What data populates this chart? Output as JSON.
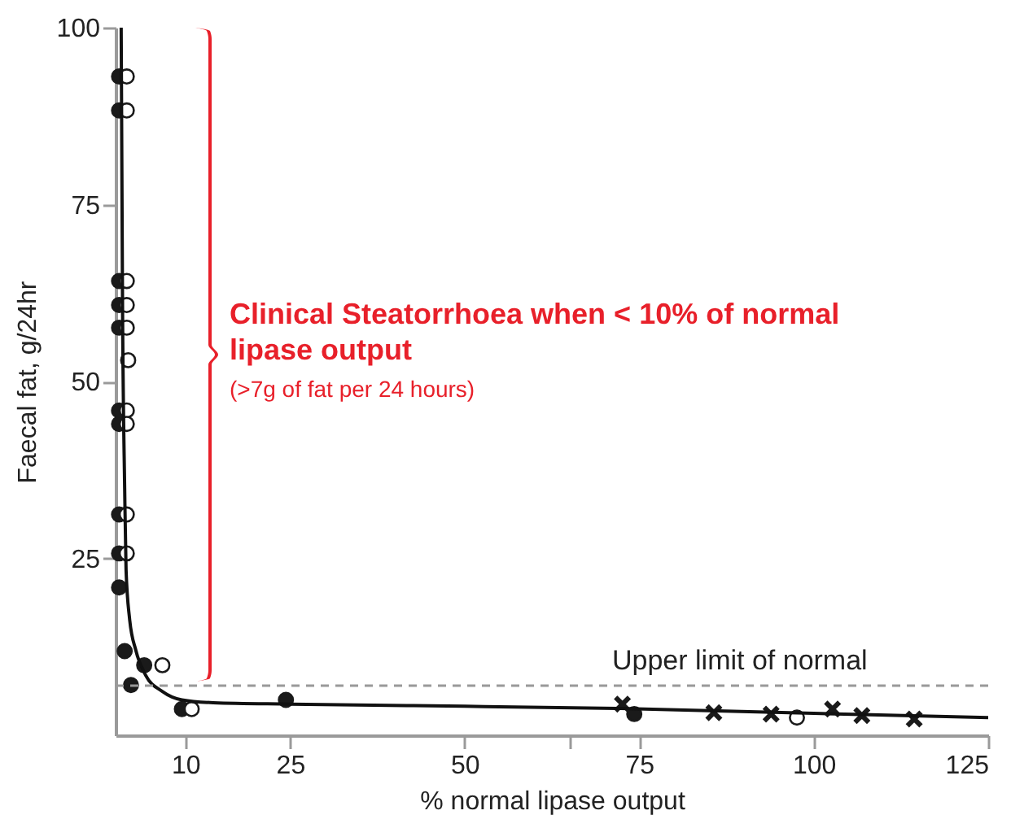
{
  "chart_data": {
    "type": "scatter",
    "xlabel": "% normal lipase output",
    "ylabel": "Faecal fat, g/24hr",
    "xlim": [
      0,
      125
    ],
    "ylim": [
      0,
      100
    ],
    "xticks": [
      10,
      25,
      50,
      {
        "value": 65,
        "label": null
      },
      75,
      100,
      125
    ],
    "yticks": [
      25,
      50,
      75,
      100
    ],
    "grid": false,
    "series": [
      {
        "type": "scatter",
        "marker": "circle",
        "color": "#1a1a1a",
        "x": [
          0.5,
          0.5,
          0.5,
          0.5,
          0.5,
          0.5,
          0.5,
          0.5,
          0.5,
          0.5,
          1.3,
          2.2,
          4.1,
          9.5,
          24.4,
          74.3
        ],
        "values": [
          93.1,
          88.3,
          64.2,
          60.8,
          57.6,
          45.9,
          44.0,
          31.2,
          25.7,
          20.9,
          11.9,
          7.1,
          9.9,
          3.7,
          5.0,
          3.0
        ]
      },
      {
        "type": "scatter",
        "marker": "circle",
        "color": "#ffffff",
        "x": [
          1.6,
          1.6,
          1.6,
          1.6,
          1.6,
          1.8,
          1.6,
          1.6,
          1.6,
          1.6,
          6.7,
          10.9,
          97.6
        ],
        "values": [
          93.1,
          88.3,
          64.2,
          60.8,
          57.6,
          53.0,
          45.9,
          44.0,
          31.2,
          25.7,
          9.9,
          3.7,
          2.5
        ]
      },
      {
        "type": "scatter",
        "marker": "cross",
        "color": "#1a1a1a",
        "x": [
          72.6,
          85.7,
          93.9,
          102.7,
          106.9,
          114.4
        ],
        "values": [
          4.4,
          3.2,
          3.0,
          3.7,
          2.8,
          2.3
        ]
      },
      {
        "type": "line",
        "marker": "none",
        "line_style": "solid",
        "color": "#111111",
        "x": [
          0.8,
          1.0,
          1.3,
          1.5,
          2.0,
          2.9,
          4.3,
          6.7,
          9.5,
          14,
          25,
          50,
          72,
          100,
          125
        ],
        "values": [
          100,
          60,
          35,
          23.4,
          16.5,
          12,
          8.5,
          6.2,
          5.0,
          4.6,
          4.4,
          4.1,
          3.8,
          3.1,
          2.5
        ]
      }
    ],
    "ref_lines": [
      {
        "axis": "y",
        "value": 7,
        "label": "Upper limit of normal",
        "color": "#999999",
        "line_style": "dashed"
      }
    ],
    "annotations": [
      "Clinical Steatorrhoea when < 10% of normal lipase output",
      "(>7g of fat per 24 hours)"
    ]
  }
}
